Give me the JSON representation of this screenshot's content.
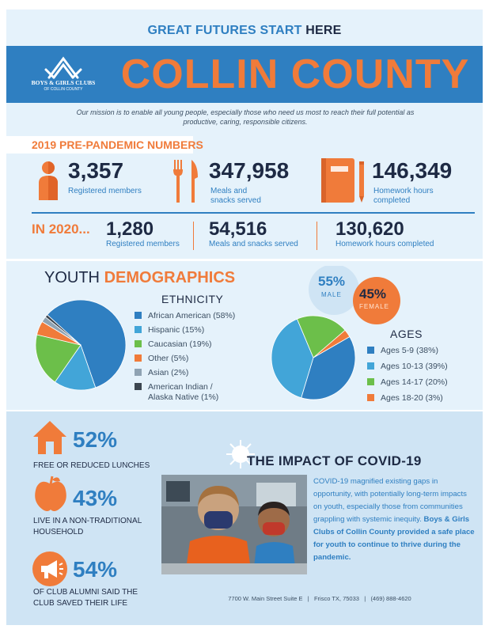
{
  "header": {
    "tagline_main": "GREAT FUTURES START ",
    "tagline_here": "HERE",
    "logo_name": "BOYS & GIRLS CLUBS",
    "logo_sub": "OF COLLIN COUNTY",
    "county": "COLLIN COUNTY",
    "mission": "Our mission is to enable all young people, especially those who need us most to reach their full potential as productive, caring, responsible citizens."
  },
  "prepandemic": {
    "title": "2019 PRE-PANDEMIC NUMBERS",
    "members_value": "3,357",
    "members_label": "Registered members",
    "meals_value": "347,958",
    "meals_label_1": "Meals and",
    "meals_label_2": "snacks served",
    "homework_value": "146,349",
    "homework_label_1": "Homework hours",
    "homework_label_2": "completed"
  },
  "y2020": {
    "title": "IN 2020...",
    "members_value": "1,280",
    "members_label": "Registered members",
    "meals_value": "54,516",
    "meals_label": "Meals and snacks served",
    "homework_value": "130,620",
    "homework_label": "Homework hours completed"
  },
  "demographics": {
    "title_plain": "YOUTH ",
    "title_accent": "DEMOGRAPHICS",
    "male_pct": "55%",
    "male_label": "MALE",
    "female_pct": "45%",
    "female_label": "FEMALE"
  },
  "chart_data": [
    {
      "type": "pie",
      "title": "ETHNICITY",
      "categories": [
        "African American",
        "Hispanic",
        "Caucasian",
        "Other",
        "Asian",
        "American Indian / Alaska Native"
      ],
      "values": [
        58,
        15,
        19,
        5,
        2,
        1
      ],
      "legend_labels": [
        "African American (58%)",
        "Hispanic (15%)",
        "Caucasian (19%)",
        "Other (5%)",
        "Asian (2%)",
        "American Indian /",
        "Alaska Native (1%)"
      ],
      "colors": [
        "#2f7fc1",
        "#42a5d8",
        "#6cbf4a",
        "#f07b3a",
        "#8fa3b3",
        "#3c4650"
      ],
      "legend": "right"
    },
    {
      "type": "pie",
      "title": "AGES",
      "categories": [
        "Ages 5-9",
        "Ages 10-13",
        "Ages 14-17",
        "Ages 18-20"
      ],
      "values": [
        38,
        39,
        20,
        3
      ],
      "legend_labels": [
        "Ages 5-9 (38%)",
        "Ages 10-13 (39%)",
        "Ages 14-17 (20%)",
        "Ages 18-20 (3%)"
      ],
      "colors": [
        "#2f7fc1",
        "#42a5d8",
        "#6cbf4a",
        "#f07b3a"
      ],
      "legend": "right"
    }
  ],
  "stats": [
    {
      "pct": "52%",
      "caption_1": "FREE OR REDUCED LUNCHES",
      "caption_2": "",
      "icon": "house-icon"
    },
    {
      "pct": "43%",
      "caption_1": "LIVE IN A NON-TRADITIONAL",
      "caption_2": "HOUSEHOLD",
      "icon": "apple-icon"
    },
    {
      "pct": "54%",
      "caption_1": "OF CLUB ALUMNI SAID THE",
      "caption_2": "CLUB SAVED THEIR LIFE",
      "icon": "megaphone-icon"
    }
  ],
  "covid": {
    "title": "THE IMPACT OF COVID-19",
    "text": "COVID-19 magnified existing gaps in opportunity, with potentially long-term impacts on youth, especially those from communities grappling with systemic inequity. ",
    "text_bold": "Boys & Girls Clubs of Collin County provided a safe place for youth to continue to thrive during the pandemic."
  },
  "footer": {
    "address": "7700 W. Main Street Suite E",
    "sep1": "|",
    "city": "Frisco TX, 75033",
    "sep2": "|",
    "phone": "(469) 888-4620"
  },
  "colors": {
    "blue": "#2f7fc1",
    "orange": "#f07b3a",
    "navy": "#1e2a44",
    "light_bg": "#e5f2fb"
  }
}
